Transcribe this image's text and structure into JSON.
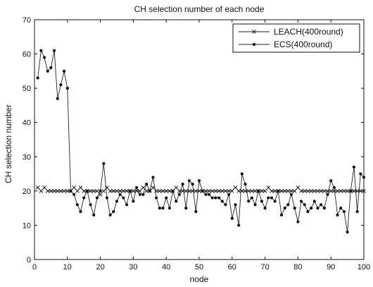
{
  "chart_data": {
    "type": "line",
    "title": "CH selection number of each node",
    "xlabel": "node",
    "ylabel": "CH selection number",
    "xlim": [
      0,
      100
    ],
    "ylim": [
      0,
      70
    ],
    "xticks": [
      0,
      10,
      20,
      30,
      40,
      50,
      60,
      70,
      80,
      90,
      100
    ],
    "yticks": [
      0,
      10,
      20,
      30,
      40,
      50,
      60,
      70
    ],
    "grid": false,
    "legend_position": "top-right",
    "series": [
      {
        "name": "LEACH(400round)",
        "marker": "x",
        "color": "#222222",
        "x": [
          1,
          2,
          3,
          4,
          5,
          6,
          7,
          8,
          9,
          10,
          11,
          12,
          13,
          14,
          15,
          16,
          17,
          18,
          19,
          20,
          21,
          22,
          23,
          24,
          25,
          26,
          27,
          28,
          29,
          30,
          31,
          32,
          33,
          34,
          35,
          36,
          37,
          38,
          39,
          40,
          41,
          42,
          43,
          44,
          45,
          46,
          47,
          48,
          49,
          50,
          51,
          52,
          53,
          54,
          55,
          56,
          57,
          58,
          59,
          60,
          61,
          62,
          63,
          64,
          65,
          66,
          67,
          68,
          69,
          70,
          71,
          72,
          73,
          74,
          75,
          76,
          77,
          78,
          79,
          80,
          81,
          82,
          83,
          84,
          85,
          86,
          87,
          88,
          89,
          90,
          91,
          92,
          93,
          94,
          95,
          96,
          97,
          98,
          99,
          100
        ],
        "values": [
          21,
          20,
          21,
          20,
          20,
          20,
          20,
          20,
          20,
          20,
          20,
          21,
          20,
          21,
          20,
          20,
          20,
          20,
          20,
          19,
          20,
          21,
          20,
          20,
          20,
          20,
          20,
          20,
          20,
          20,
          20,
          20,
          21,
          20,
          20,
          21,
          20,
          20,
          20,
          20,
          20,
          20,
          21,
          20,
          20,
          20,
          20,
          20,
          20,
          20,
          20,
          20,
          20,
          20,
          20,
          20,
          20,
          20,
          20,
          20,
          21,
          20,
          20,
          20,
          20,
          20,
          20,
          20,
          20,
          20,
          21,
          20,
          20,
          20,
          20,
          20,
          20,
          20,
          20,
          21,
          20,
          20,
          20,
          20,
          20,
          20,
          20,
          20,
          20,
          20,
          20,
          20,
          20,
          20,
          20,
          20,
          20,
          20,
          20,
          20
        ]
      },
      {
        "name": "ECS(400round)",
        "marker": "dot",
        "color": "#222222",
        "x": [
          1,
          2,
          3,
          4,
          5,
          6,
          7,
          8,
          9,
          10,
          11,
          12,
          13,
          14,
          15,
          16,
          17,
          18,
          19,
          20,
          21,
          22,
          23,
          24,
          25,
          26,
          27,
          28,
          29,
          30,
          31,
          32,
          33,
          34,
          35,
          36,
          37,
          38,
          39,
          40,
          41,
          42,
          43,
          44,
          45,
          46,
          47,
          48,
          49,
          50,
          51,
          52,
          53,
          54,
          55,
          56,
          57,
          58,
          59,
          60,
          61,
          62,
          63,
          64,
          65,
          66,
          67,
          68,
          69,
          70,
          71,
          72,
          73,
          74,
          75,
          76,
          77,
          78,
          79,
          80,
          81,
          82,
          83,
          84,
          85,
          86,
          87,
          88,
          89,
          90,
          91,
          92,
          93,
          94,
          95,
          96,
          97,
          98,
          99,
          100
        ],
        "values": [
          53,
          61,
          59,
          55,
          56,
          61,
          47,
          51,
          55,
          50,
          20,
          19,
          16,
          14,
          18,
          20,
          16,
          13,
          18,
          20,
          28,
          18,
          13,
          14,
          17,
          19,
          18,
          16,
          20,
          17,
          21,
          19,
          19,
          22,
          20,
          24,
          18,
          15,
          15,
          18,
          15,
          20,
          17,
          19,
          22,
          15,
          23,
          22,
          14,
          23,
          20,
          19,
          19,
          18,
          18,
          18,
          17,
          16,
          19,
          12,
          16,
          10,
          25,
          22,
          17,
          18,
          16,
          20,
          17,
          15,
          18,
          18,
          17,
          20,
          13,
          15,
          16,
          19,
          15,
          11,
          17,
          16,
          14,
          15,
          17,
          15,
          16,
          15,
          19,
          23,
          21,
          13,
          15,
          14,
          8,
          20,
          27,
          14,
          25,
          24
        ]
      }
    ]
  }
}
